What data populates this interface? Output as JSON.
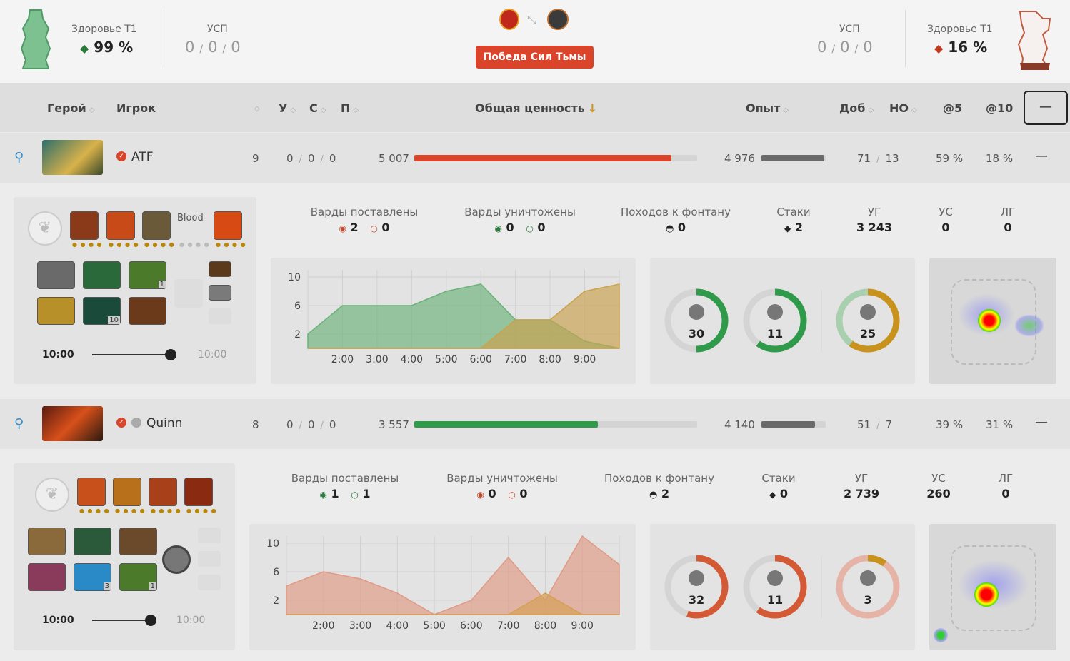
{
  "header": {
    "left": {
      "health_label": "Здоровье T1",
      "health_value": "99 %",
      "ksp_label": "УСП",
      "ksp": [
        "0",
        "0",
        "0"
      ]
    },
    "right": {
      "health_label": "Здоровье T1",
      "health_value": "16 %",
      "ksp_label": "УСП",
      "ksp": [
        "0",
        "0",
        "0"
      ]
    },
    "result": "Победа Сил Тьмы"
  },
  "columns": {
    "hero": "Герой",
    "player": "Игрок",
    "k": "У",
    "d": "С",
    "a": "П",
    "networth": "Общая ценность",
    "xp": "Опыт",
    "lh_dn": "Доб",
    "no": "НО",
    "at5": "@5",
    "at10": "@10",
    "collapse": "—"
  },
  "players": [
    {
      "name": "ATF",
      "level": "9",
      "kda": [
        "0",
        "0",
        "0"
      ],
      "networth": "5 007",
      "networth_frac": 0.91,
      "networth_color": "#d9442a",
      "xp": "4 976",
      "xp_frac": 0.98,
      "lh": "71",
      "dn": "13",
      "at5": "59 %",
      "at10": "18 %",
      "collapse": "—",
      "item_text": "Blood",
      "item_charges": [
        "1",
        "10"
      ],
      "stats": {
        "wards_placed_label": "Варды поставлены",
        "wards_placed": [
          "2",
          "0"
        ],
        "wards_destroyed_label": "Варды уничтожены",
        "wards_destroyed": [
          "0",
          "0"
        ],
        "fountain_label": "Походов к фонтану",
        "fountain": "0",
        "stacks_label": "Стаки",
        "stacks": "2",
        "hero_dmg_label": "УГ",
        "hero_dmg": "3 243",
        "heal_label": "УС",
        "heal": "0",
        "tower_label": "ЛГ",
        "tower": "0"
      },
      "chart_data": {
        "type": "area",
        "x": [
          "1:30",
          "2:00",
          "3:00",
          "4:00",
          "5:00",
          "6:00",
          "7:00",
          "8:00",
          "9:00",
          "9:40"
        ],
        "x_ticks": [
          "2:00",
          "3:00",
          "4:00",
          "5:00",
          "6:00",
          "7:00",
          "8:00",
          "9:00"
        ],
        "y_ticks": [
          "10",
          "6",
          "2"
        ],
        "ylim": [
          0,
          11
        ],
        "series": [
          {
            "values": [
              2,
              6,
              6,
              6,
              8,
              9,
              4,
              4,
              1,
              0
            ],
            "color": "#6ab27a"
          },
          {
            "values": [
              0,
              0,
              0,
              0,
              0,
              0,
              4,
              4,
              8,
              9
            ],
            "color": "#c9a24b"
          }
        ]
      },
      "donuts": [
        {
          "value": "30",
          "frac": 0.5,
          "color": "#2e9a4a"
        },
        {
          "value": "11",
          "frac": 0.6,
          "color": "#2e9a4a"
        },
        {
          "value": "25",
          "frac": 0.6,
          "color": "#c8921c",
          "rest": "#a8d0ae"
        }
      ],
      "timeline": {
        "current": "10:00",
        "end": "10:00",
        "frac": 1
      }
    },
    {
      "name": "Quinn",
      "level": "8",
      "kda": [
        "0",
        "0",
        "0"
      ],
      "networth": "3 557",
      "networth_frac": 0.65,
      "networth_color": "#2e9a4a",
      "xp": "4 140",
      "xp_frac": 0.83,
      "lh": "51",
      "dn": "7",
      "at5": "39 %",
      "at10": "31 %",
      "collapse": "—",
      "item_charges": [
        "3",
        "1"
      ],
      "stats": {
        "wards_placed_label": "Варды поставлены",
        "wards_placed": [
          "1",
          "1"
        ],
        "wards_destroyed_label": "Варды уничтожены",
        "wards_destroyed": [
          "0",
          "0"
        ],
        "fountain_label": "Походов к фонтану",
        "fountain": "2",
        "stacks_label": "Стаки",
        "stacks": "0",
        "hero_dmg_label": "УГ",
        "hero_dmg": "2 739",
        "heal_label": "УС",
        "heal": "260",
        "tower_label": "ЛГ",
        "tower": "0"
      },
      "chart_data": {
        "type": "area",
        "x": [
          "1:00",
          "2:00",
          "3:00",
          "4:00",
          "5:00",
          "6:00",
          "7:00",
          "8:00",
          "9:00",
          "10:00"
        ],
        "x_ticks": [
          "2:00",
          "3:00",
          "4:00",
          "5:00",
          "6:00",
          "7:00",
          "8:00",
          "9:00"
        ],
        "y_ticks": [
          "10",
          "6",
          "2"
        ],
        "ylim": [
          0,
          11
        ],
        "series": [
          {
            "values": [
              4,
              6,
              5,
              3,
              0,
              2,
              8,
              2,
              11,
              7
            ],
            "color": "#e09a84"
          },
          {
            "values": [
              0,
              0,
              0,
              0,
              0,
              0,
              0,
              3,
              0,
              0
            ],
            "color": "#d4a052"
          }
        ]
      },
      "donuts": [
        {
          "value": "32",
          "frac": 0.55,
          "color": "#d45a35"
        },
        {
          "value": "11",
          "frac": 0.6,
          "color": "#d45a35"
        },
        {
          "value": "3",
          "frac": 0.1,
          "color": "#c8921c",
          "rest": "#e6b4a6"
        }
      ],
      "timeline": {
        "current": "10:00",
        "end": "10:00",
        "frac": 1
      }
    }
  ]
}
